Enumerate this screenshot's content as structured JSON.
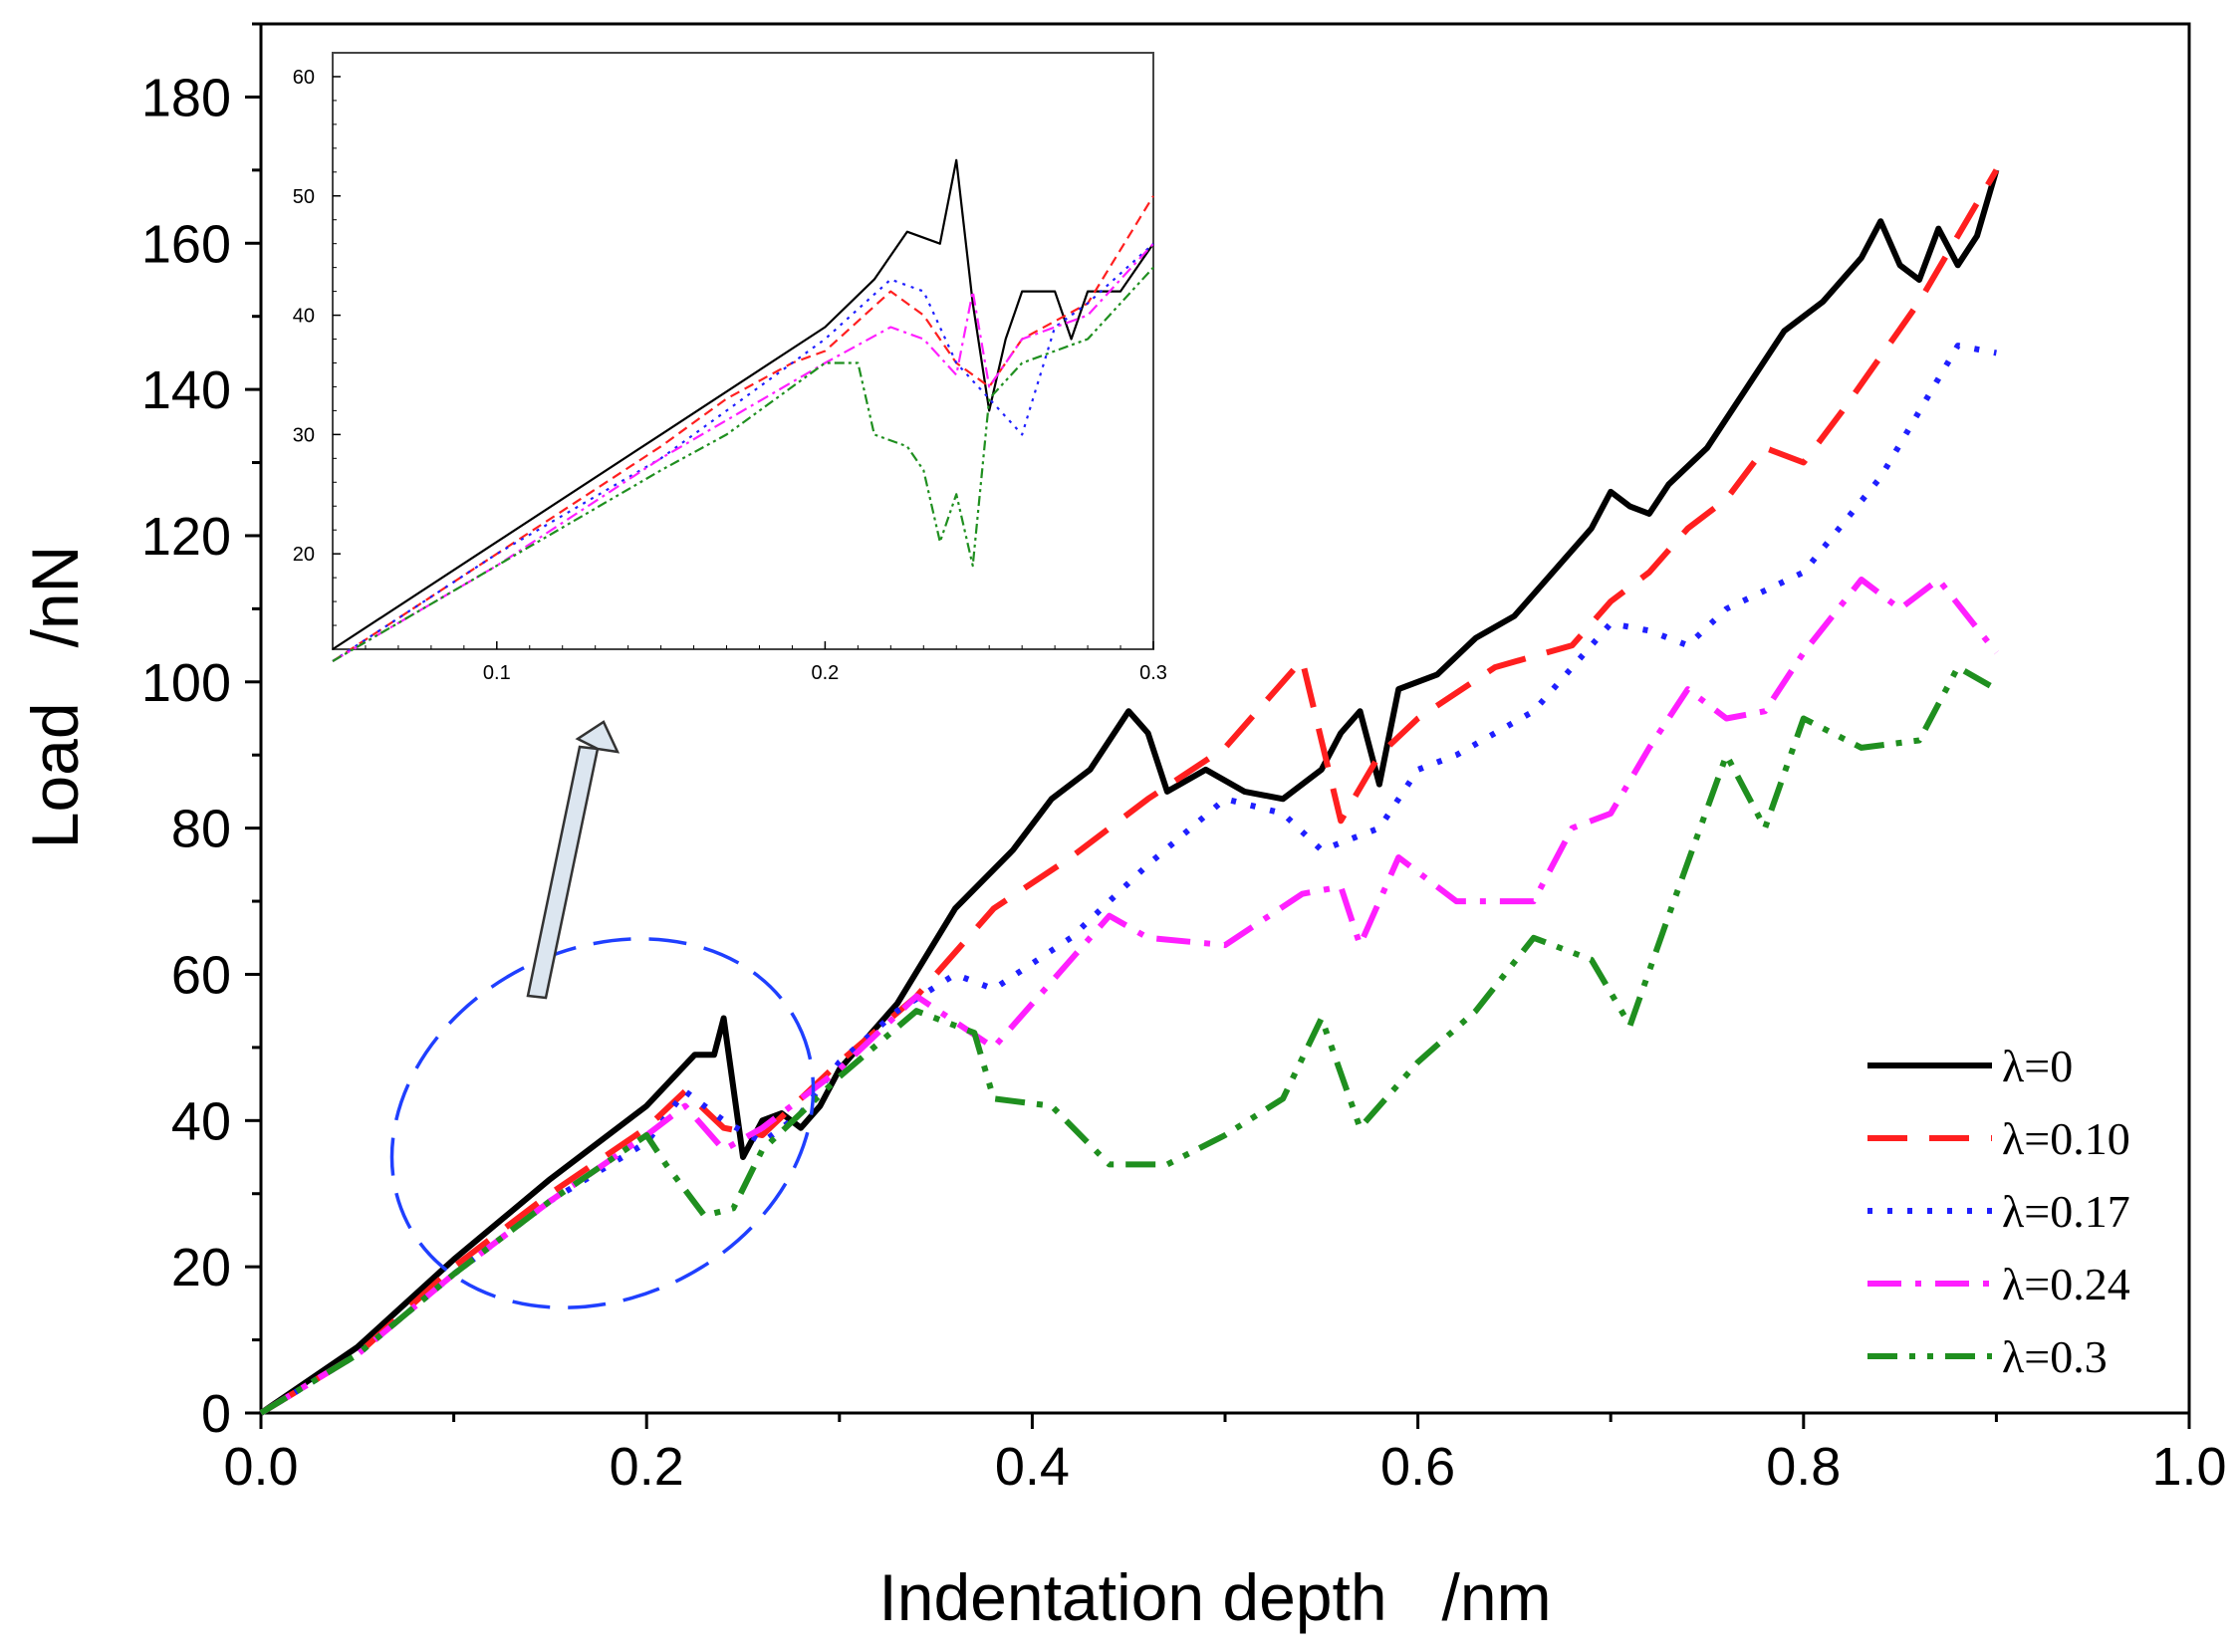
{
  "chart_data": {
    "type": "line",
    "xlabel": "Indentation depth   /nm",
    "ylabel": "Load   /nN",
    "xlim": [
      0,
      1.0
    ],
    "ylim": [
      0,
      190
    ],
    "x_ticks": [
      0.0,
      0.2,
      0.4,
      0.6,
      0.8,
      1.0
    ],
    "x_tick_labels": [
      "0.0",
      "0.2",
      "0.4",
      "0.6",
      "0.8",
      "1.0"
    ],
    "y_ticks": [
      0,
      20,
      40,
      60,
      80,
      100,
      120,
      140,
      160,
      180
    ],
    "y_tick_labels": [
      "0",
      "20",
      "40",
      "60",
      "80",
      "100",
      "120",
      "140",
      "160",
      "180"
    ],
    "legend_position": "bottom-right",
    "series": [
      {
        "name": "λ=0",
        "color": "#000000",
        "style": "solid",
        "points": [
          [
            0,
            0
          ],
          [
            0.05,
            9
          ],
          [
            0.1,
            21
          ],
          [
            0.15,
            32
          ],
          [
            0.2,
            42
          ],
          [
            0.225,
            49
          ],
          [
            0.235,
            49
          ],
          [
            0.24,
            54
          ],
          [
            0.25,
            35
          ],
          [
            0.26,
            40
          ],
          [
            0.27,
            41
          ],
          [
            0.28,
            39
          ],
          [
            0.29,
            42
          ],
          [
            0.3,
            47
          ],
          [
            0.33,
            56
          ],
          [
            0.36,
            69
          ],
          [
            0.39,
            77
          ],
          [
            0.41,
            84
          ],
          [
            0.43,
            88
          ],
          [
            0.45,
            96
          ],
          [
            0.46,
            93
          ],
          [
            0.47,
            85
          ],
          [
            0.49,
            88
          ],
          [
            0.51,
            85
          ],
          [
            0.53,
            84
          ],
          [
            0.55,
            88
          ],
          [
            0.56,
            93
          ],
          [
            0.57,
            96
          ],
          [
            0.58,
            86
          ],
          [
            0.59,
            99
          ],
          [
            0.61,
            101
          ],
          [
            0.63,
            106
          ],
          [
            0.65,
            109
          ],
          [
            0.67,
            115
          ],
          [
            0.69,
            121
          ],
          [
            0.7,
            126
          ],
          [
            0.71,
            124
          ],
          [
            0.72,
            123
          ],
          [
            0.73,
            127
          ],
          [
            0.75,
            132
          ],
          [
            0.77,
            140
          ],
          [
            0.79,
            148
          ],
          [
            0.81,
            152
          ],
          [
            0.83,
            158
          ],
          [
            0.84,
            163
          ],
          [
            0.85,
            157
          ],
          [
            0.86,
            155
          ],
          [
            0.87,
            162
          ],
          [
            0.88,
            157
          ],
          [
            0.89,
            161
          ],
          [
            0.9,
            170
          ]
        ]
      },
      {
        "name": "λ=0.10",
        "color": "#ff1f1f",
        "style": "dash",
        "points": [
          [
            0,
            0
          ],
          [
            0.05,
            8
          ],
          [
            0.1,
            20
          ],
          [
            0.15,
            30
          ],
          [
            0.2,
            39
          ],
          [
            0.22,
            44
          ],
          [
            0.24,
            39
          ],
          [
            0.26,
            38
          ],
          [
            0.3,
            48
          ],
          [
            0.34,
            57
          ],
          [
            0.38,
            69
          ],
          [
            0.42,
            76
          ],
          [
            0.46,
            84
          ],
          [
            0.5,
            91
          ],
          [
            0.54,
            103
          ],
          [
            0.56,
            81
          ],
          [
            0.58,
            90
          ],
          [
            0.6,
            95
          ],
          [
            0.64,
            102
          ],
          [
            0.68,
            105
          ],
          [
            0.7,
            111
          ],
          [
            0.72,
            115
          ],
          [
            0.74,
            121
          ],
          [
            0.76,
            125
          ],
          [
            0.78,
            132
          ],
          [
            0.8,
            130
          ],
          [
            0.82,
            137
          ],
          [
            0.86,
            152
          ],
          [
            0.9,
            170
          ]
        ]
      },
      {
        "name": "λ=0.17",
        "color": "#1f1fff",
        "style": "dot",
        "points": [
          [
            0,
            0
          ],
          [
            0.05,
            8
          ],
          [
            0.1,
            19
          ],
          [
            0.15,
            29
          ],
          [
            0.2,
            37
          ],
          [
            0.22,
            44
          ],
          [
            0.24,
            40
          ],
          [
            0.26,
            37
          ],
          [
            0.28,
            41
          ],
          [
            0.3,
            48
          ],
          [
            0.33,
            55
          ],
          [
            0.36,
            60
          ],
          [
            0.38,
            58
          ],
          [
            0.42,
            65
          ],
          [
            0.46,
            75
          ],
          [
            0.5,
            84
          ],
          [
            0.53,
            82
          ],
          [
            0.55,
            77
          ],
          [
            0.58,
            80
          ],
          [
            0.6,
            88
          ],
          [
            0.62,
            90
          ],
          [
            0.66,
            96
          ],
          [
            0.7,
            108
          ],
          [
            0.72,
            107
          ],
          [
            0.74,
            105
          ],
          [
            0.76,
            110
          ],
          [
            0.8,
            115
          ],
          [
            0.84,
            128
          ],
          [
            0.88,
            146
          ],
          [
            0.9,
            145
          ]
        ]
      },
      {
        "name": "λ=0.24",
        "color": "#ff1fff",
        "style": "dashdot",
        "points": [
          [
            0,
            0
          ],
          [
            0.05,
            8
          ],
          [
            0.1,
            19
          ],
          [
            0.15,
            29
          ],
          [
            0.2,
            38
          ],
          [
            0.22,
            42
          ],
          [
            0.24,
            36
          ],
          [
            0.26,
            39
          ],
          [
            0.3,
            47
          ],
          [
            0.34,
            57
          ],
          [
            0.38,
            50
          ],
          [
            0.42,
            62
          ],
          [
            0.44,
            68
          ],
          [
            0.46,
            65
          ],
          [
            0.5,
            64
          ],
          [
            0.54,
            71
          ],
          [
            0.56,
            72
          ],
          [
            0.57,
            64
          ],
          [
            0.59,
            76
          ],
          [
            0.62,
            70
          ],
          [
            0.66,
            70
          ],
          [
            0.68,
            80
          ],
          [
            0.7,
            82
          ],
          [
            0.72,
            91
          ],
          [
            0.74,
            99
          ],
          [
            0.76,
            95
          ],
          [
            0.78,
            96
          ],
          [
            0.8,
            104
          ],
          [
            0.83,
            114
          ],
          [
            0.85,
            110
          ],
          [
            0.87,
            114
          ],
          [
            0.9,
            104
          ]
        ]
      },
      {
        "name": "λ=0.3",
        "color": "#1f8f1f",
        "style": "dashdotdot",
        "points": [
          [
            0,
            0
          ],
          [
            0.05,
            8
          ],
          [
            0.1,
            19
          ],
          [
            0.15,
            29
          ],
          [
            0.2,
            38
          ],
          [
            0.21,
            34
          ],
          [
            0.23,
            27
          ],
          [
            0.245,
            28
          ],
          [
            0.26,
            36
          ],
          [
            0.3,
            46
          ],
          [
            0.34,
            55
          ],
          [
            0.37,
            52
          ],
          [
            0.38,
            43
          ],
          [
            0.41,
            42
          ],
          [
            0.44,
            34
          ],
          [
            0.47,
            34
          ],
          [
            0.5,
            38
          ],
          [
            0.53,
            43
          ],
          [
            0.55,
            54
          ],
          [
            0.57,
            39
          ],
          [
            0.6,
            48
          ],
          [
            0.63,
            55
          ],
          [
            0.66,
            65
          ],
          [
            0.69,
            62
          ],
          [
            0.71,
            53
          ],
          [
            0.73,
            68
          ],
          [
            0.76,
            90
          ],
          [
            0.78,
            80
          ],
          [
            0.8,
            95
          ],
          [
            0.83,
            91
          ],
          [
            0.86,
            92
          ],
          [
            0.88,
            102
          ],
          [
            0.9,
            99
          ]
        ]
      }
    ],
    "inset": {
      "xlim": [
        0.05,
        0.3
      ],
      "ylim": [
        12,
        62
      ],
      "x_ticks": [
        0.1,
        0.2,
        0.3
      ],
      "x_tick_labels": [
        "0.1",
        "0.2",
        "0.3"
      ],
      "y_ticks": [
        20,
        30,
        40,
        50,
        60
      ],
      "y_tick_labels": [
        "20",
        "30",
        "40",
        "50",
        "60"
      ],
      "series": [
        {
          "name": "λ=0",
          "color": "#000000",
          "points": [
            [
              0.05,
              12
            ],
            [
              0.1,
              21
            ],
            [
              0.15,
              30
            ],
            [
              0.2,
              39
            ],
            [
              0.215,
              43
            ],
            [
              0.225,
              47
            ],
            [
              0.235,
              46
            ],
            [
              0.24,
              53
            ],
            [
              0.245,
              41
            ],
            [
              0.25,
              32
            ],
            [
              0.255,
              38
            ],
            [
              0.26,
              42
            ],
            [
              0.27,
              42
            ],
            [
              0.275,
              38
            ],
            [
              0.28,
              42
            ],
            [
              0.29,
              42
            ],
            [
              0.3,
              46
            ]
          ]
        },
        {
          "name": "λ=0.10",
          "color": "#ff1f1f",
          "points": [
            [
              0.05,
              11
            ],
            [
              0.1,
              20
            ],
            [
              0.15,
              29
            ],
            [
              0.17,
              33
            ],
            [
              0.19,
              36
            ],
            [
              0.2,
              37
            ],
            [
              0.22,
              42
            ],
            [
              0.23,
              40
            ],
            [
              0.24,
              36
            ],
            [
              0.25,
              34
            ],
            [
              0.26,
              38
            ],
            [
              0.28,
              41
            ],
            [
              0.3,
              50
            ]
          ]
        },
        {
          "name": "λ=0.17",
          "color": "#1f1fff",
          "points": [
            [
              0.05,
              11
            ],
            [
              0.1,
              20
            ],
            [
              0.15,
              28
            ],
            [
              0.2,
              38
            ],
            [
              0.22,
              43
            ],
            [
              0.23,
              42
            ],
            [
              0.24,
              36
            ],
            [
              0.25,
              33
            ],
            [
              0.26,
              30
            ],
            [
              0.27,
              39
            ],
            [
              0.28,
              41
            ],
            [
              0.3,
              46
            ]
          ]
        },
        {
          "name": "λ=0.24",
          "color": "#ff1fff",
          "points": [
            [
              0.05,
              11
            ],
            [
              0.1,
              19
            ],
            [
              0.15,
              28
            ],
            [
              0.2,
              36
            ],
            [
              0.22,
              39
            ],
            [
              0.23,
              38
            ],
            [
              0.24,
              35
            ],
            [
              0.245,
              42
            ],
            [
              0.25,
              34
            ],
            [
              0.26,
              38
            ],
            [
              0.28,
              40
            ],
            [
              0.3,
              46
            ]
          ]
        },
        {
          "name": "λ=0.3",
          "color": "#1f8f1f",
          "points": [
            [
              0.05,
              11
            ],
            [
              0.1,
              19
            ],
            [
              0.15,
              27
            ],
            [
              0.17,
              30
            ],
            [
              0.2,
              36
            ],
            [
              0.21,
              36
            ],
            [
              0.215,
              30
            ],
            [
              0.225,
              29
            ],
            [
              0.23,
              27
            ],
            [
              0.235,
              21
            ],
            [
              0.24,
              25
            ],
            [
              0.245,
              19
            ],
            [
              0.25,
              33
            ],
            [
              0.26,
              36
            ],
            [
              0.28,
              38
            ],
            [
              0.3,
              44
            ]
          ]
        }
      ]
    }
  }
}
